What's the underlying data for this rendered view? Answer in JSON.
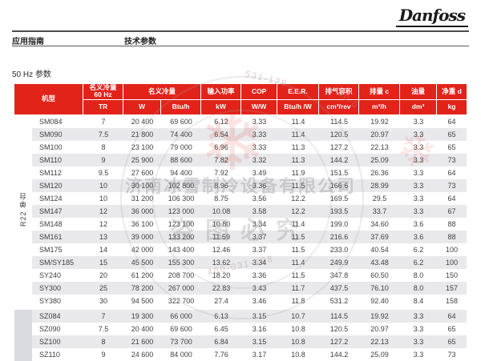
{
  "brand": {
    "logo_text": "Danfoss"
  },
  "header": {
    "left_label": "应用指南",
    "right_label": "技术参数"
  },
  "section": {
    "title": "50 Hz 参数"
  },
  "colors": {
    "brand_red": "#e2231a",
    "row_stripe": "#e9e9ec",
    "text": "#3f3f3f"
  },
  "table": {
    "headers": {
      "model": "机型",
      "cap60_line1": "名义冷量",
      "cap60_line2": "60 Hz",
      "cap60_unit": "TR",
      "cap": "名义冷量",
      "cap_unit_w": "W",
      "cap_unit_btuh": "Btu/h",
      "power": "输入功率",
      "power_unit": "kW",
      "cop": "COP",
      "cop_unit": "W/W",
      "eer": "E.E.R.",
      "eer_unit": "Btu/h /W",
      "swept": "排气容积",
      "swept_unit": "cm³/rev",
      "disp": "排量 c",
      "disp_unit": "m³/h",
      "oil": "油量",
      "oil_unit": "dm³",
      "weight": "净重 d",
      "weight_unit": "kg"
    },
    "groups": [
      {
        "label": "R22 单台",
        "rows": [
          [
            "SM084",
            "7",
            "20 400",
            "69 600",
            "6.12",
            "3.33",
            "11.4",
            "114.5",
            "19.92",
            "3.3",
            "64"
          ],
          [
            "SM090",
            "7.5",
            "21 800",
            "74 400",
            "6.54",
            "3.33",
            "11.4",
            "120.5",
            "20.97",
            "3.3",
            "65"
          ],
          [
            "SM100",
            "8",
            "23 100",
            "79 000",
            "6.96",
            "3.33",
            "11.3",
            "127.2",
            "22.13",
            "3.3",
            "65"
          ],
          [
            "SM110",
            "9",
            "25 900",
            "88 600",
            "7.82",
            "3.32",
            "11.3",
            "144.2",
            "25.09",
            "3.3",
            "73"
          ],
          [
            "SM112",
            "9.5",
            "27 600",
            "94 400",
            "7.92",
            "3.49",
            "11.9",
            "151.5",
            "26.36",
            "3.3",
            "64"
          ],
          [
            "SM120",
            "10",
            "30 100",
            "102 800",
            "8.96",
            "3.36",
            "11.5",
            "166.6",
            "28.99",
            "3.3",
            "73"
          ],
          [
            "SM124",
            "10",
            "31 200",
            "106 300",
            "8.75",
            "3.56",
            "12.2",
            "169.5",
            "29.5",
            "3.3",
            "64"
          ],
          [
            "SM147",
            "12",
            "36 000",
            "123 000",
            "10.08",
            "3.58",
            "12.2",
            "193.5",
            "33.7",
            "3.3",
            "67"
          ],
          [
            "SM148",
            "12",
            "36 100",
            "123 100",
            "10.80",
            "3.34",
            "11.4",
            "199.0",
            "34.60",
            "3.6",
            "88"
          ],
          [
            "SM161",
            "13",
            "39 000",
            "133 200",
            "11.59",
            "3.37",
            "11.5",
            "216.6",
            "37.69",
            "3.6",
            "88"
          ],
          [
            "SM175",
            "14",
            "42 000",
            "143 400",
            "12.46",
            "3.37",
            "11.5",
            "233.0",
            "40.54",
            "6.2",
            "100"
          ],
          [
            "SM/SY185",
            "15",
            "45 500",
            "155 300",
            "13.62",
            "3.34",
            "11.4",
            "249.9",
            "43.48",
            "6.2",
            "100"
          ],
          [
            "SY240",
            "20",
            "61 200",
            "208 700",
            "18.20",
            "3.36",
            "11.5",
            "347.8",
            "60.50",
            "8.0",
            "150"
          ],
          [
            "SY300",
            "25",
            "78 200",
            "267 000",
            "22.83",
            "3.43",
            "11.7",
            "437.5",
            "76.10",
            "8.0",
            "157"
          ],
          [
            "SY380",
            "30",
            "94 500",
            "322 700",
            "27.4",
            "3.46",
            "11.8",
            "531.2",
            "92.40",
            "8.4",
            "158"
          ]
        ]
      },
      {
        "label": "",
        "rows": [
          [
            "SZ084",
            "7",
            "19 300",
            "66 000",
            "6.13",
            "3.15",
            "10.7",
            "114.5",
            "19.92",
            "3.3",
            "64"
          ],
          [
            "SZ090",
            "7.5",
            "20 400",
            "69 600",
            "6.45",
            "3.16",
            "10.8",
            "120.5",
            "20.97",
            "3.3",
            "65"
          ],
          [
            "SZ100",
            "8",
            "21 600",
            "73 700",
            "6.84",
            "3.15",
            "10.8",
            "127.2",
            "22.13",
            "3.3",
            "65"
          ],
          [
            "SZ110",
            "9",
            "24 600",
            "84 000",
            "7.76",
            "3.17",
            "10.8",
            "144.2",
            "25.09",
            "3.3",
            "73"
          ]
        ]
      }
    ]
  },
  "watermark": {
    "company": "济南冰雪制冷设备有限公司",
    "warning": "盗图必究",
    "snowflake_icon": "❄",
    "phone_fragment_1": "531-128",
    "phone_fragment_2": "400-0",
    "phone_fragment_3": "400-031-128"
  }
}
